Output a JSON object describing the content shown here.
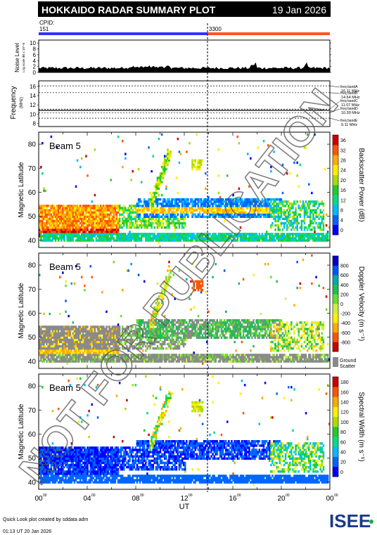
{
  "header": {
    "title": "HOKKAIDO RADAR SUMMARY PLOT",
    "date": "19 Jan 2026"
  },
  "cpid": {
    "label": "CPID:",
    "left_value": "151",
    "right_value": "3300",
    "left_color": "#3333ff",
    "right_color": "#ff5522"
  },
  "noise": {
    "ylabel": "Noise Level",
    "ysub": "Log scale dB x 10^-8",
    "ticks": [
      "0",
      "2",
      "4",
      "6",
      "8",
      "10"
    ]
  },
  "frequency": {
    "ylabel": "Frequency",
    "unit": "(MHz)",
    "ticks": [
      "8",
      "10",
      "12",
      "14",
      "16"
    ],
    "bands": [
      "freq bandA 16.11 MHz",
      "freq bandB 14.64 MHz",
      "freq bandC 11.07 MHz",
      "freq bandD 10.30 MHz",
      "freq bandE 9.11 MHz"
    ]
  },
  "panels": [
    {
      "beam": "Beam  5",
      "ylabel": "Magnetic Latitude",
      "cbar_label": "Backscatter Power (dB)",
      "cbar_ticks": [
        "0",
        "4",
        "8",
        "12",
        "16",
        "20",
        "24",
        "28",
        "32",
        "36"
      ]
    },
    {
      "beam": "Beam  5",
      "ylabel": "Magnetic Latitude",
      "cbar_label": "Doppler Velocity (m s⁻¹)",
      "cbar_ticks": [
        "-800",
        "-600",
        "-400",
        "-200",
        "0",
        "200",
        "400",
        "600",
        "800"
      ],
      "ground_label": "Ground",
      "ground_label2": "Scatter"
    },
    {
      "beam": "Beam  5",
      "ylabel": "Magnetic Latitude",
      "cbar_label": "Spectral Width (m s⁻¹)",
      "cbar_ticks": [
        "0",
        "20",
        "40",
        "60",
        "80",
        "100",
        "120",
        "140",
        "160",
        "180"
      ]
    }
  ],
  "lat_ticks": [
    "40",
    "50",
    "60",
    "70",
    "80"
  ],
  "time_ticks": [
    "00",
    "04",
    "08",
    "12",
    "16",
    "20",
    "00"
  ],
  "xlabel": "UT",
  "watermark": "NOT FOR PUBLICATION",
  "footer": {
    "credit": "Quick Look plot created by sddata adm",
    "timestamp": "01:13 UT 20 Jan 2026",
    "logo": "ISEE"
  },
  "chart_data": {
    "type": "heatmap",
    "title": "HOKKAIDO RADAR SUMMARY PLOT",
    "x_axis": {
      "label": "UT",
      "range_hours": [
        0,
        24
      ],
      "ticks": [
        "00",
        "04",
        "08",
        "12",
        "16",
        "20",
        "00"
      ]
    },
    "y_axis": {
      "label": "Magnetic Latitude",
      "range": [
        37,
        85
      ],
      "ticks": [
        40,
        50,
        60,
        70,
        80
      ]
    },
    "cpid_change_ut": 14.0,
    "panels": [
      "Backscatter Power (dB)",
      "Doppler Velocity (m s-1)",
      "Spectral Width (m s-1)"
    ],
    "colorbar_ranges": [
      [
        0,
        36
      ],
      [
        -800,
        800
      ],
      [
        0,
        180
      ]
    ]
  }
}
